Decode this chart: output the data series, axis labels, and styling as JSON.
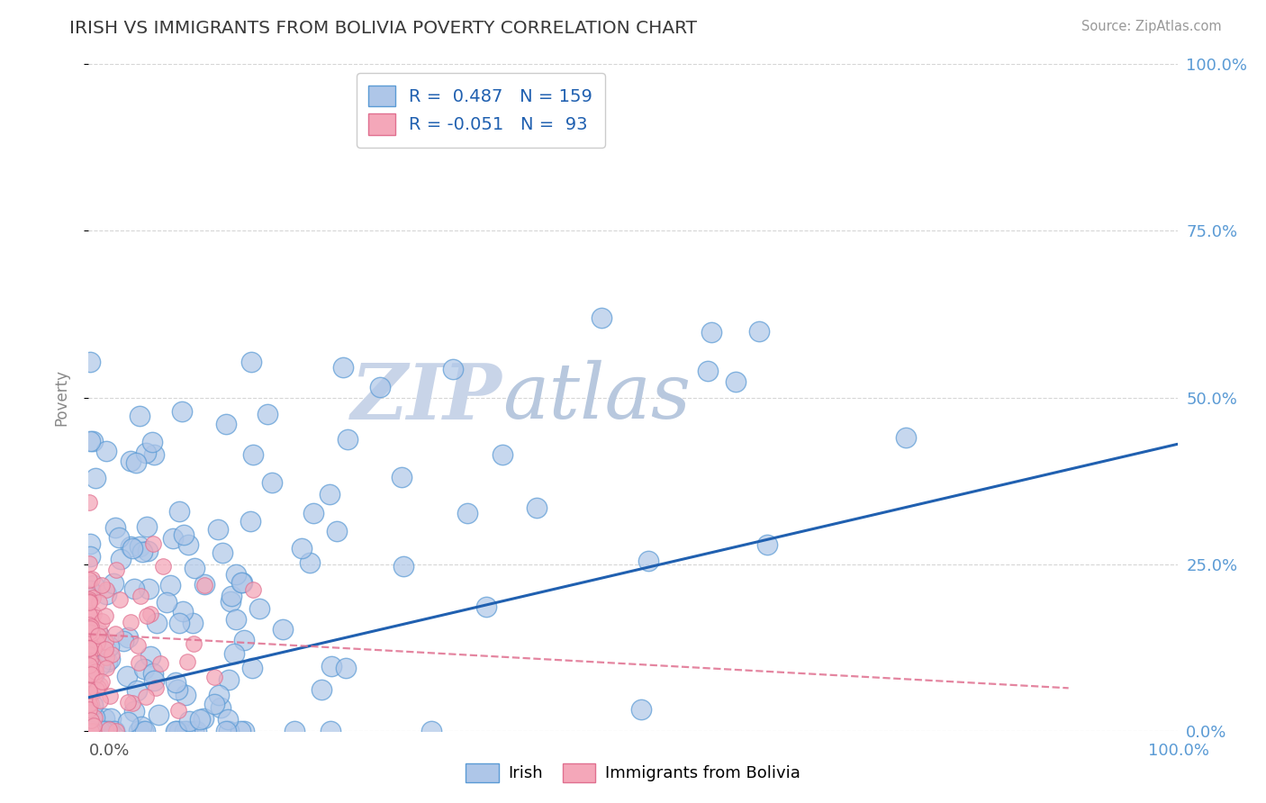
{
  "title": "IRISH VS IMMIGRANTS FROM BOLIVIA POVERTY CORRELATION CHART",
  "source_text": "Source: ZipAtlas.com",
  "ylabel": "Poverty",
  "xlim": [
    0.0,
    1.0
  ],
  "ylim": [
    0.0,
    1.0
  ],
  "ytick_labels": [
    "0.0%",
    "25.0%",
    "50.0%",
    "75.0%",
    "100.0%"
  ],
  "ytick_values": [
    0.0,
    0.25,
    0.5,
    0.75,
    1.0
  ],
  "xtick_labels": [
    "0.0%",
    "100.0%"
  ],
  "irish_R": 0.487,
  "irish_N": 159,
  "bolivia_R": -0.051,
  "bolivia_N": 93,
  "irish_color": "#aec6e8",
  "irish_edge_color": "#5b9bd5",
  "bolivia_color": "#f4a7b9",
  "bolivia_edge_color": "#e07090",
  "irish_line_color": "#2060b0",
  "bolivia_line_color": "#e07090",
  "watermark_zip_color": "#c5cfe0",
  "watermark_atlas_color": "#b0bfd8",
  "grid_color": "#cccccc",
  "title_color": "#3a3a3a",
  "legend_text_color": "#2060b0",
  "right_label_color": "#5b9bd5",
  "axis_label_color": "#888888",
  "background_color": "#ffffff"
}
